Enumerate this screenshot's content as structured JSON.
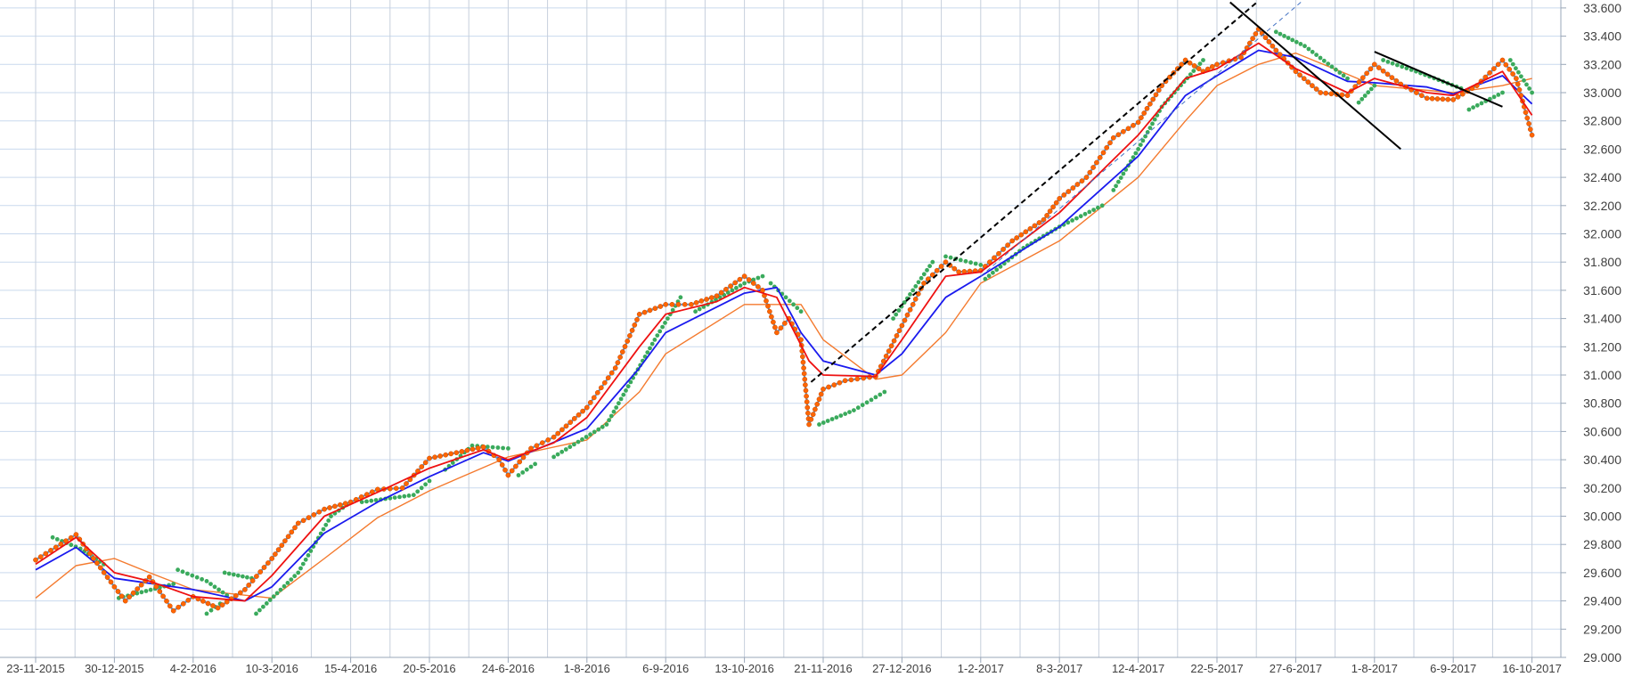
{
  "chart_data": {
    "type": "line",
    "title": "",
    "xlabel": "",
    "ylabel": "",
    "x_ticks": [
      "23-11-2015",
      "30-12-2015",
      "4-2-2016",
      "10-3-2016",
      "15-4-2016",
      "20-5-2016",
      "24-6-2016",
      "1-8-2016",
      "6-9-2016",
      "13-10-2016",
      "21-11-2016",
      "27-12-2016",
      "1-2-2017",
      "8-3-2017",
      "12-4-2017",
      "22-5-2017",
      "27-6-2017",
      "1-8-2017",
      "6-9-2017",
      "16-10-2017"
    ],
    "y_ticks": [
      "29.000",
      "29.200",
      "29.400",
      "29.600",
      "29.800",
      "30.000",
      "30.200",
      "30.400",
      "30.600",
      "30.800",
      "31.000",
      "31.200",
      "31.400",
      "31.600",
      "31.800",
      "32.000",
      "32.200",
      "32.400",
      "32.600",
      "32.800",
      "33.000",
      "33.200",
      "33.400",
      "33.600"
    ],
    "ylim": [
      29000,
      33600
    ],
    "grid": true,
    "legend": "none",
    "series": [
      {
        "role": "price",
        "color": "#5b9bd5",
        "marker_color": "#ff6600",
        "points": [
          [
            "23-11-2015",
            29690
          ],
          [
            "12-12-2015",
            29870
          ],
          [
            "30-12-2015",
            29500
          ],
          [
            "4-1-2016",
            29400
          ],
          [
            "15-1-2016",
            29570
          ],
          [
            "26-1-2016",
            29330
          ],
          [
            "4-2-2016",
            29430
          ],
          [
            "15-2-2016",
            29350
          ],
          [
            "27-2-2016",
            29480
          ],
          [
            "10-3-2016",
            29700
          ],
          [
            "22-3-2016",
            29950
          ],
          [
            "3-4-2016",
            30050
          ],
          [
            "15-4-2016",
            30100
          ],
          [
            "27-4-2016",
            30190
          ],
          [
            "8-5-2016",
            30200
          ],
          [
            "20-5-2016",
            30410
          ],
          [
            "1-6-2016",
            30450
          ],
          [
            "13-6-2016",
            30490
          ],
          [
            "20-6-2016",
            30400
          ],
          [
            "24-6-2016",
            30290
          ],
          [
            "5-7-2016",
            30480
          ],
          [
            "16-7-2016",
            30560
          ],
          [
            "1-8-2016",
            30770
          ],
          [
            "14-8-2016",
            31050
          ],
          [
            "25-8-2016",
            31430
          ],
          [
            "6-9-2016",
            31500
          ],
          [
            "18-9-2016",
            31500
          ],
          [
            "30-9-2016",
            31560
          ],
          [
            "13-10-2016",
            31700
          ],
          [
            "22-10-2016",
            31600
          ],
          [
            "29-10-2016",
            31300
          ],
          [
            "4-11-2016",
            31400
          ],
          [
            "10-11-2016",
            31250
          ],
          [
            "14-11-2016",
            30650
          ],
          [
            "21-11-2016",
            30900
          ],
          [
            "1-12-2016",
            30960
          ],
          [
            "15-12-2016",
            30990
          ],
          [
            "27-12-2016",
            31350
          ],
          [
            "6-1-2017",
            31650
          ],
          [
            "16-1-2017",
            31800
          ],
          [
            "22-1-2017",
            31730
          ],
          [
            "1-2-2017",
            31740
          ],
          [
            "15-2-2017",
            31950
          ],
          [
            "1-3-2017",
            32100
          ],
          [
            "8-3-2017",
            32250
          ],
          [
            "20-3-2017",
            32400
          ],
          [
            "1-4-2017",
            32680
          ],
          [
            "12-4-2017",
            32790
          ],
          [
            "24-4-2017",
            33050
          ],
          [
            "6-5-2017",
            33230
          ],
          [
            "15-5-2017",
            33150
          ],
          [
            "22-5-2017",
            33200
          ],
          [
            "2-6-2017",
            33250
          ],
          [
            "10-6-2017",
            33450
          ],
          [
            "18-6-2017",
            33300
          ],
          [
            "27-6-2017",
            33150
          ],
          [
            "8-7-2017",
            33000
          ],
          [
            "20-7-2017",
            32980
          ],
          [
            "1-8-2017",
            33200
          ],
          [
            "13-8-2017",
            33060
          ],
          [
            "25-8-2017",
            32960
          ],
          [
            "6-9-2017",
            32950
          ],
          [
            "18-9-2017",
            33050
          ],
          [
            "1-10-2017",
            33230
          ],
          [
            "8-10-2017",
            33100
          ],
          [
            "16-10-2017",
            32700
          ]
        ]
      },
      {
        "role": "moving-average-short",
        "color": "#ee1111",
        "points": [
          [
            "23-11-2015",
            29660
          ],
          [
            "12-12-2015",
            29850
          ],
          [
            "30-12-2015",
            29600
          ],
          [
            "15-1-2016",
            29540
          ],
          [
            "4-2-2016",
            29430
          ],
          [
            "27-2-2016",
            29400
          ],
          [
            "10-3-2016",
            29580
          ],
          [
            "3-4-2016",
            30000
          ],
          [
            "27-4-2016",
            30170
          ],
          [
            "20-5-2016",
            30340
          ],
          [
            "13-6-2016",
            30470
          ],
          [
            "24-6-2016",
            30400
          ],
          [
            "16-7-2016",
            30520
          ],
          [
            "1-8-2016",
            30700
          ],
          [
            "25-8-2016",
            31200
          ],
          [
            "6-9-2016",
            31430
          ],
          [
            "30-9-2016",
            31520
          ],
          [
            "13-10-2016",
            31620
          ],
          [
            "29-10-2016",
            31550
          ],
          [
            "14-11-2016",
            31100
          ],
          [
            "21-11-2016",
            31000
          ],
          [
            "15-12-2016",
            30990
          ],
          [
            "27-12-2016",
            31250
          ],
          [
            "16-1-2017",
            31700
          ],
          [
            "1-2-2017",
            31730
          ],
          [
            "8-3-2017",
            32150
          ],
          [
            "12-4-2017",
            32700
          ],
          [
            "6-5-2017",
            33100
          ],
          [
            "22-5-2017",
            33170
          ],
          [
            "10-6-2017",
            33350
          ],
          [
            "27-6-2017",
            33170
          ],
          [
            "20-7-2017",
            33000
          ],
          [
            "1-8-2017",
            33100
          ],
          [
            "25-8-2017",
            33000
          ],
          [
            "6-9-2017",
            32980
          ],
          [
            "1-10-2017",
            33150
          ],
          [
            "16-10-2017",
            32840
          ]
        ]
      },
      {
        "role": "moving-average-medium",
        "color": "#1a1aee",
        "points": [
          [
            "23-11-2015",
            29620
          ],
          [
            "12-12-2015",
            29780
          ],
          [
            "30-12-2015",
            29560
          ],
          [
            "4-2-2016",
            29480
          ],
          [
            "27-2-2016",
            29400
          ],
          [
            "10-3-2016",
            29500
          ],
          [
            "3-4-2016",
            29880
          ],
          [
            "27-4-2016",
            30100
          ],
          [
            "20-5-2016",
            30280
          ],
          [
            "13-6-2016",
            30450
          ],
          [
            "24-6-2016",
            30390
          ],
          [
            "1-8-2016",
            30620
          ],
          [
            "25-8-2016",
            31050
          ],
          [
            "6-9-2016",
            31300
          ],
          [
            "13-10-2016",
            31580
          ],
          [
            "29-10-2016",
            31620
          ],
          [
            "10-11-2016",
            31300
          ],
          [
            "21-11-2016",
            31100
          ],
          [
            "15-12-2016",
            31000
          ],
          [
            "27-12-2016",
            31150
          ],
          [
            "16-1-2017",
            31550
          ],
          [
            "1-2-2017",
            31700
          ],
          [
            "8-3-2017",
            32050
          ],
          [
            "12-4-2017",
            32550
          ],
          [
            "6-5-2017",
            32980
          ],
          [
            "22-5-2017",
            33120
          ],
          [
            "10-6-2017",
            33300
          ],
          [
            "27-6-2017",
            33250
          ],
          [
            "20-7-2017",
            33080
          ],
          [
            "1-8-2017",
            33070
          ],
          [
            "25-8-2017",
            33040
          ],
          [
            "6-9-2017",
            32990
          ],
          [
            "1-10-2017",
            33120
          ],
          [
            "16-10-2017",
            32920
          ]
        ]
      },
      {
        "role": "moving-average-long",
        "color": "#f47a2e",
        "points": [
          [
            "23-11-2015",
            29420
          ],
          [
            "12-12-2015",
            29650
          ],
          [
            "30-12-2015",
            29700
          ],
          [
            "15-1-2016",
            29600
          ],
          [
            "4-2-2016",
            29480
          ],
          [
            "10-3-2016",
            29420
          ],
          [
            "3-4-2016",
            29700
          ],
          [
            "27-4-2016",
            29990
          ],
          [
            "20-5-2016",
            30180
          ],
          [
            "24-6-2016",
            30420
          ],
          [
            "1-8-2016",
            30540
          ],
          [
            "25-8-2016",
            30880
          ],
          [
            "6-9-2016",
            31150
          ],
          [
            "13-10-2016",
            31500
          ],
          [
            "10-11-2016",
            31500
          ],
          [
            "21-11-2016",
            31250
          ],
          [
            "15-12-2016",
            30970
          ],
          [
            "27-12-2016",
            31000
          ],
          [
            "16-1-2017",
            31300
          ],
          [
            "1-2-2017",
            31650
          ],
          [
            "8-3-2017",
            31950
          ],
          [
            "12-4-2017",
            32400
          ],
          [
            "6-5-2017",
            32800
          ],
          [
            "22-5-2017",
            33050
          ],
          [
            "10-6-2017",
            33200
          ],
          [
            "27-6-2017",
            33280
          ],
          [
            "20-7-2017",
            33130
          ],
          [
            "1-8-2017",
            33050
          ],
          [
            "6-9-2017",
            33000
          ],
          [
            "1-10-2017",
            33050
          ],
          [
            "16-10-2017",
            33100
          ]
        ]
      },
      {
        "role": "parabolic-sar",
        "color": "#3aaa5c",
        "style": "dots",
        "segments": [
          [
            [
              "1-12-2015",
              29850
            ],
            [
              "14-12-2015",
              29770
            ],
            [
              "25-12-2015",
              29660
            ]
          ],
          [
            [
              "1-1-2016",
              29420
            ],
            [
              "26-1-2016",
              29520
            ]
          ],
          [
            [
              "28-1-2016",
              29620
            ],
            [
              "10-2-2016",
              29540
            ],
            [
              "19-2-2016",
              29440
            ]
          ],
          [
            [
              "10-2-2016",
              29310
            ],
            [
              "16-2-2016",
              29380
            ]
          ],
          [
            [
              "18-2-2016",
              29600
            ],
            [
              "1-3-2016",
              29560
            ]
          ],
          [
            [
              "3-3-2016",
              29310
            ],
            [
              "22-3-2016",
              29600
            ],
            [
              "6-4-2016",
              30000
            ],
            [
              "15-4-2016",
              30100
            ]
          ],
          [
            [
              "20-4-2016",
              30100
            ],
            [
              "13-5-2016",
              30150
            ],
            [
              "20-5-2016",
              30250
            ]
          ],
          [
            [
              "27-5-2016",
              30330
            ],
            [
              "8-6-2016",
              30500
            ],
            [
              "24-6-2016",
              30480
            ]
          ],
          [
            [
              "29-6-2016",
              30290
            ],
            [
              "7-7-2016",
              30370
            ]
          ],
          [
            [
              "16-7-2016",
              30420
            ],
            [
              "10-8-2016",
              30650
            ],
            [
              "1-9-2016",
              31250
            ],
            [
              "13-9-2016",
              31550
            ]
          ],
          [
            [
              "20-9-2016",
              31450
            ],
            [
              "13-10-2016",
              31650
            ],
            [
              "22-10-2016",
              31700
            ]
          ],
          [
            [
              "26-10-2016",
              31650
            ],
            [
              "10-11-2016",
              31450
            ]
          ],
          [
            [
              "19-11-2016",
              30650
            ],
            [
              "5-12-2016",
              30750
            ],
            [
              "19-12-2016",
              30880
            ]
          ],
          [
            [
              "23-12-2016",
              31400
            ],
            [
              "10-1-2017",
              31800
            ]
          ],
          [
            [
              "16-1-2017",
              31840
            ],
            [
              "1-2-2017",
              31780
            ]
          ],
          [
            [
              "3-2-2017",
              31680
            ],
            [
              "20-2-2017",
              31900
            ],
            [
              "8-3-2017",
              32050
            ],
            [
              "27-3-2017",
              32200
            ]
          ],
          [
            [
              "1-4-2017",
              32310
            ],
            [
              "12-4-2017",
              32600
            ],
            [
              "24-4-2017",
              32900
            ],
            [
              "15-5-2017",
              33230
            ]
          ],
          [
            [
              "18-6-2017",
              33430
            ],
            [
              "1-7-2017",
              33330
            ],
            [
              "20-7-2017",
              33100
            ]
          ],
          [
            [
              "25-7-2017",
              32930
            ],
            [
              "1-8-2017",
              33050
            ]
          ],
          [
            [
              "5-8-2017",
              33230
            ],
            [
              "20-8-2017",
              33150
            ],
            [
              "10-9-2017",
              33030
            ]
          ],
          [
            [
              "14-9-2017",
              32880
            ],
            [
              "1-10-2017",
              33000
            ]
          ],
          [
            [
              "5-10-2017",
              33230
            ],
            [
              "16-10-2017",
              33000
            ]
          ]
        ]
      }
    ],
    "trendlines": [
      {
        "style": "dashed",
        "color": "#000000",
        "from": [
          "15-11-2016",
          30950
        ],
        "to": [
          "10-6-2017",
          33650
        ]
      },
      {
        "style": "dashed-thin",
        "color": "#4472c4",
        "from": [
          "1-2-2017",
          31700
        ],
        "to": [
          "30-6-2017",
          33650
        ]
      },
      {
        "style": "solid",
        "color": "#000000",
        "from": [
          "28-5-2017",
          33640
        ],
        "to": [
          "13-8-2017",
          32600
        ]
      },
      {
        "style": "solid",
        "color": "#000000",
        "from": [
          "1-8-2017",
          33290
        ],
        "to": [
          "1-10-2017",
          32900
        ]
      }
    ]
  }
}
